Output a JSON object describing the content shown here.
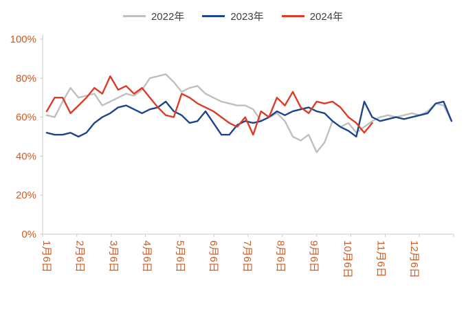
{
  "chart_data": {
    "type": "line",
    "title": "",
    "xlabel": "",
    "ylabel": "",
    "ylim": [
      0,
      100
    ],
    "y_ticks": [
      0,
      20,
      40,
      60,
      80,
      100
    ],
    "y_tick_labels": [
      "0%",
      "20%",
      "40%",
      "60%",
      "80%",
      "100%"
    ],
    "x_tick_labels": [
      "1月6日",
      "2月6日",
      "3月6日",
      "4月6日",
      "5月6日",
      "6月6日",
      "7月6日",
      "8月6日",
      "9月6日",
      "10月6日",
      "11月6日",
      "12月6日"
    ],
    "grid": false,
    "legend_position": "top",
    "axis_line_color": "#c9c9c9",
    "tick_label_color": "#cd5c24",
    "legend_text_color": "#404040",
    "series": [
      {
        "name": "2022年",
        "color": "#bfbfbf",
        "values": [
          61,
          60,
          68,
          75,
          70,
          71,
          72,
          66,
          68,
          70,
          72,
          71,
          74,
          80,
          81,
          82,
          78,
          73,
          75,
          76,
          72,
          70,
          68,
          67,
          66,
          66,
          64,
          58,
          60,
          62,
          58,
          50,
          48,
          51,
          42,
          47,
          58,
          55,
          57,
          52,
          55,
          58,
          60,
          61,
          60,
          61,
          62,
          61,
          63,
          67,
          66,
          58
        ]
      },
      {
        "name": "2023年",
        "color": "#1b458f",
        "values": [
          52,
          51,
          51,
          52,
          50,
          52,
          57,
          60,
          62,
          65,
          66,
          64,
          62,
          64,
          65,
          68,
          63,
          61,
          57,
          58,
          63,
          57,
          51,
          51,
          56,
          58,
          57,
          58,
          60,
          63,
          61,
          63,
          64,
          65,
          63,
          62,
          58,
          55,
          53,
          50,
          68,
          60,
          58,
          59,
          60,
          59,
          60,
          61,
          62,
          67,
          68,
          58
        ]
      },
      {
        "name": "2024年",
        "color": "#dd3b27",
        "values": [
          63,
          70,
          70,
          62,
          66,
          70,
          75,
          72,
          81,
          74,
          76,
          72,
          75,
          70,
          65,
          61,
          60,
          72,
          70,
          67,
          65,
          63,
          60,
          57,
          55,
          60,
          51,
          63,
          60,
          70,
          66,
          73,
          65,
          62,
          68,
          67,
          68,
          65,
          60,
          57,
          52,
          57
        ]
      }
    ]
  }
}
